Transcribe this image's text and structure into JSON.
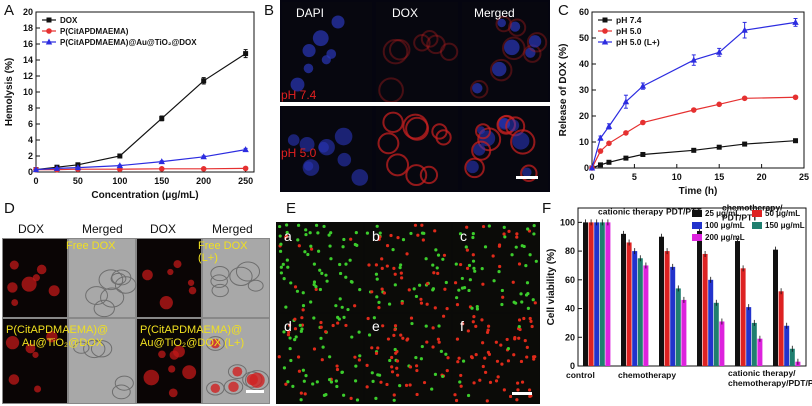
{
  "panel_letters": {
    "a": "A",
    "b": "B",
    "c": "C",
    "d": "D",
    "e": "E",
    "f": "F"
  },
  "panel_b": {
    "columns": [
      "DAPI",
      "DOX",
      "Merged"
    ],
    "rows": [
      "pH 7.4",
      "pH 5.0"
    ]
  },
  "panel_d": {
    "columns": [
      "DOX",
      "Merged",
      "DOX",
      "Merged"
    ],
    "tl_label": "Free DOX",
    "tr_label": "Free DOX (L+)",
    "bl_label": [
      "P(CitAPDMAEMA)@",
      "Au@TiO₂@DOX"
    ],
    "br_label": [
      "P(CitAPDMAEMA)@",
      "Au@TiO₂@DOX (L+)"
    ]
  },
  "panel_e": {
    "tiles": [
      "a",
      "b",
      "c",
      "d",
      "e",
      "f"
    ]
  },
  "chart_data": [
    {
      "id": "A",
      "type": "line",
      "xlabel": "Concentration (μg/mL)",
      "ylabel": "Hemolysis (%)",
      "xlim": [
        0,
        260
      ],
      "ylim": [
        0,
        20
      ],
      "xticks": [
        0,
        50,
        100,
        150,
        200,
        250
      ],
      "yticks": [
        0,
        2,
        4,
        6,
        8,
        10,
        12,
        14,
        16,
        18,
        20
      ],
      "legend": "top-left",
      "series": [
        {
          "name": "DOX",
          "color": "#111111",
          "marker": "square",
          "x": [
            0,
            25,
            50,
            100,
            150,
            200,
            250
          ],
          "y": [
            0.3,
            0.6,
            0.9,
            2.0,
            6.7,
            11.4,
            14.8
          ],
          "err": [
            0.05,
            0.1,
            0.1,
            0.15,
            0.3,
            0.4,
            0.5
          ]
        },
        {
          "name": "P(CitAPDMAEMA)",
          "color": "#e53030",
          "marker": "circle",
          "x": [
            0,
            25,
            50,
            100,
            150,
            200,
            250
          ],
          "y": [
            0.3,
            0.3,
            0.35,
            0.35,
            0.4,
            0.4,
            0.45
          ],
          "err": [
            0.05,
            0.05,
            0.05,
            0.05,
            0.05,
            0.05,
            0.05
          ]
        },
        {
          "name": "P(CitAPDMAEMA)@Au@TiO₂@DOX",
          "color": "#2c2ce0",
          "marker": "triangle",
          "x": [
            0,
            25,
            50,
            100,
            150,
            200,
            250
          ],
          "y": [
            0.3,
            0.45,
            0.55,
            0.8,
            1.3,
            1.9,
            2.8
          ],
          "err": [
            0.05,
            0.05,
            0.05,
            0.08,
            0.1,
            0.12,
            0.15
          ]
        }
      ]
    },
    {
      "id": "C",
      "type": "line",
      "xlabel": "Time (h)",
      "ylabel": "Release of DOX (%)",
      "xlim": [
        0,
        25
      ],
      "ylim": [
        0,
        60
      ],
      "xticks": [
        0,
        5,
        10,
        15,
        20,
        25
      ],
      "yticks": [
        0,
        10,
        20,
        30,
        40,
        50,
        60
      ],
      "legend": "top-left",
      "series": [
        {
          "name": "pH 7.4",
          "color": "#111111",
          "marker": "square",
          "x": [
            0,
            1,
            2,
            4,
            6,
            12,
            15,
            18,
            24
          ],
          "y": [
            0,
            1.2,
            2.2,
            3.8,
            5.2,
            6.8,
            8.0,
            9.2,
            10.5
          ],
          "err": [
            0,
            0.2,
            0.2,
            0.3,
            0.3,
            0.3,
            0.3,
            0.4,
            0.4
          ]
        },
        {
          "name": "pH 5.0",
          "color": "#e53030",
          "marker": "circle",
          "x": [
            0,
            1,
            2,
            4,
            6,
            12,
            15,
            18,
            24
          ],
          "y": [
            0,
            6.5,
            9.5,
            13.5,
            17.5,
            22.3,
            24.5,
            26.8,
            27.2
          ],
          "err": [
            0,
            0.3,
            0.4,
            0.4,
            0.4,
            0.4,
            0.4,
            0.4,
            0.4
          ]
        },
        {
          "name": "pH 5.0 (L+)",
          "color": "#2c2ce0",
          "marker": "triangle",
          "x": [
            0,
            1,
            2,
            4,
            6,
            12,
            15,
            18,
            24
          ],
          "y": [
            0,
            11.5,
            16.0,
            25.5,
            31.5,
            41.5,
            44.5,
            53.0,
            56.0
          ],
          "err": [
            0,
            0.8,
            1.0,
            2.5,
            1.2,
            2.0,
            1.5,
            3.0,
            1.5
          ]
        }
      ]
    },
    {
      "id": "F",
      "type": "bar",
      "ylabel": "Cell viability (%)",
      "ylim": [
        0,
        110
      ],
      "yticks": [
        0,
        20,
        40,
        60,
        80,
        100
      ],
      "legend": "top",
      "categories": [
        "control",
        "cationic therapy",
        "chemotherapy",
        "PDT/PTT",
        "chemotherapy/ PDT/PTT",
        "cationic therapy/ chemotherapy/PDT/PTT"
      ],
      "series": [
        {
          "name": "25 μg/mL",
          "color": "#111111",
          "values": [
            100,
            92,
            90,
            94,
            87,
            81
          ]
        },
        {
          "name": "50 μg/mL",
          "color": "#dd2222",
          "values": [
            100,
            86,
            80,
            78,
            68,
            52
          ]
        },
        {
          "name": "100 μg/mL",
          "color": "#2233cc",
          "values": [
            100,
            80,
            69,
            60,
            41,
            28
          ]
        },
        {
          "name": "150 μg/mL",
          "color": "#1f7f6f",
          "values": [
            100,
            75,
            54,
            44,
            30,
            12
          ]
        },
        {
          "name": "200 μg/mL",
          "color": "#dd22dd",
          "values": [
            100,
            70,
            46,
            31,
            19,
            3
          ]
        }
      ]
    }
  ]
}
